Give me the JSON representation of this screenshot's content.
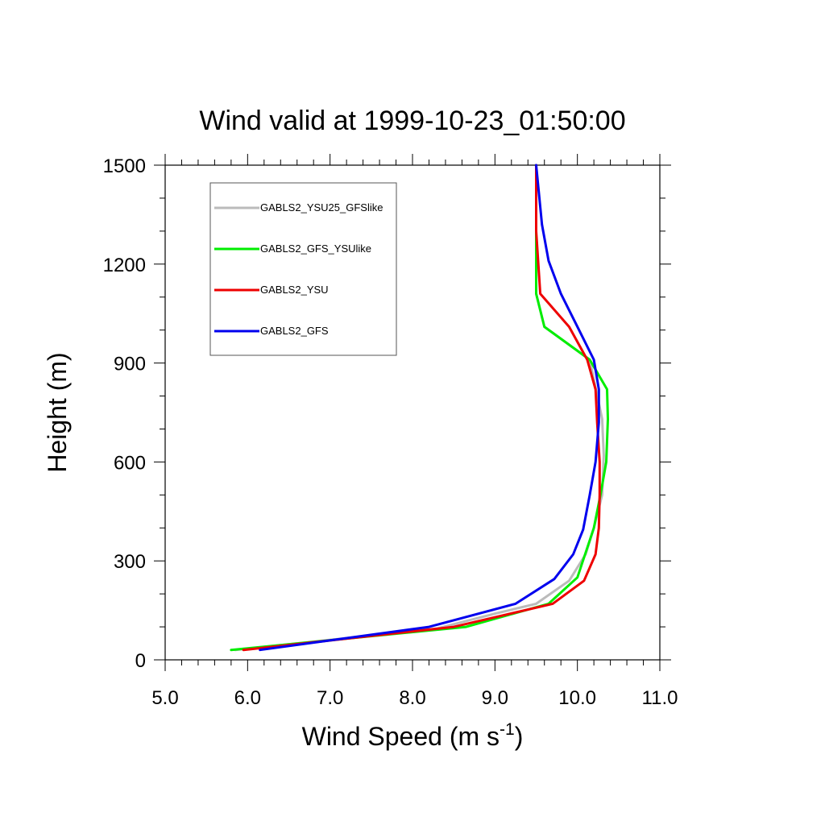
{
  "chart_data": {
    "type": "line",
    "title": "Wind valid at 1999-10-23_01:50:00",
    "xlabel": "Wind Speed (m s",
    "xlabel_sup": "-1",
    "xlabel_end": ")",
    "ylabel": "Height (m)",
    "xlim": [
      5.0,
      11.0
    ],
    "ylim": [
      0,
      1500
    ],
    "xticks": [
      5.0,
      6.0,
      7.0,
      8.0,
      9.0,
      10.0,
      11.0
    ],
    "xtick_labels": [
      "5.0",
      "6.0",
      "7.0",
      "8.0",
      "9.0",
      "10.0",
      "11.0"
    ],
    "yticks": [
      0,
      300,
      600,
      900,
      1200,
      1500
    ],
    "ytick_labels": [
      "0",
      "300",
      "600",
      "900",
      "1200",
      "1500"
    ],
    "grid": false,
    "legend_position": "top-left",
    "series": [
      {
        "name": "GABLS2_YSU25_GFSlike",
        "color": "#bbbbbb",
        "x": [
          5.85,
          8.3,
          9.0,
          9.5,
          9.9,
          10.1,
          10.2,
          10.3,
          10.32,
          10.3,
          10.15,
          9.6,
          9.5,
          9.5,
          9.5
        ],
        "y": [
          30,
          95,
          140,
          170,
          240,
          320,
          400,
          500,
          620,
          730,
          910,
          1010,
          1110,
          1300,
          1500
        ]
      },
      {
        "name": "GABLS2_GFS_YSUlike",
        "color": "#00ee00",
        "x": [
          5.8,
          8.65,
          9.65,
          10.0,
          10.2,
          10.28,
          10.35,
          10.37,
          10.36,
          10.15,
          9.6,
          9.5,
          9.5,
          9.5
        ],
        "y": [
          30,
          100,
          170,
          250,
          400,
          500,
          600,
          730,
          820,
          910,
          1010,
          1110,
          1300,
          1500
        ]
      },
      {
        "name": "GABLS2_YSU",
        "color": "#ee0000",
        "x": [
          5.95,
          8.5,
          9.7,
          10.08,
          10.22,
          10.26,
          10.27,
          10.27,
          10.24,
          10.22,
          10.12,
          9.9,
          9.55,
          9.5,
          9.5
        ],
        "y": [
          30,
          100,
          170,
          240,
          320,
          400,
          500,
          600,
          720,
          820,
          910,
          1010,
          1110,
          1300,
          1500
        ]
      },
      {
        "name": "GABLS2_GFS",
        "color": "#0000ee",
        "x": [
          6.15,
          8.2,
          9.25,
          9.72,
          9.95,
          10.07,
          10.15,
          10.22,
          10.26,
          10.26,
          10.2,
          10.0,
          9.8,
          9.65,
          9.57,
          9.5
        ],
        "y": [
          30,
          100,
          170,
          245,
          320,
          395,
          500,
          600,
          720,
          820,
          910,
          1010,
          1110,
          1210,
          1320,
          1500
        ]
      }
    ]
  }
}
